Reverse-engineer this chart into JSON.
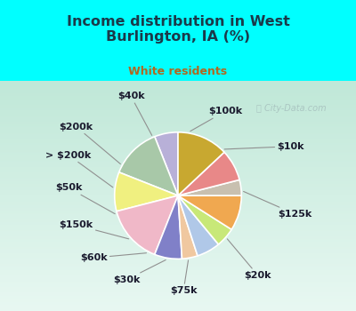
{
  "title": "Income distribution in West\nBurlington, IA (%)",
  "subtitle": "White residents",
  "bg_color": "#00FFFF",
  "chart_bg_colors": [
    "#e8f5ee",
    "#f5faf8"
  ],
  "labels": [
    "$100k",
    "$10k",
    "$125k",
    "$20k",
    "$75k",
    "$30k",
    "$60k",
    "$150k",
    "$50k",
    "> $200k",
    "$200k",
    "$40k"
  ],
  "sizes": [
    6,
    13,
    10,
    15,
    7,
    4,
    6,
    5,
    9,
    4,
    8,
    13
  ],
  "colors": [
    "#b8b0d8",
    "#a8c8a8",
    "#f0f080",
    "#f0b8c8",
    "#8080c8",
    "#f0c8a0",
    "#b0c8e8",
    "#c8e878",
    "#f0a850",
    "#c8c0b0",
    "#e88888",
    "#c8a830"
  ],
  "startangle": 90,
  "title_color": "#1a3a4a",
  "subtitle_color": "#b06820",
  "watermark": "  City-Data.com",
  "label_color": "#1a1a2e",
  "label_fontsize": 8,
  "title_fontsize": 11.5,
  "subtitle_fontsize": 9
}
